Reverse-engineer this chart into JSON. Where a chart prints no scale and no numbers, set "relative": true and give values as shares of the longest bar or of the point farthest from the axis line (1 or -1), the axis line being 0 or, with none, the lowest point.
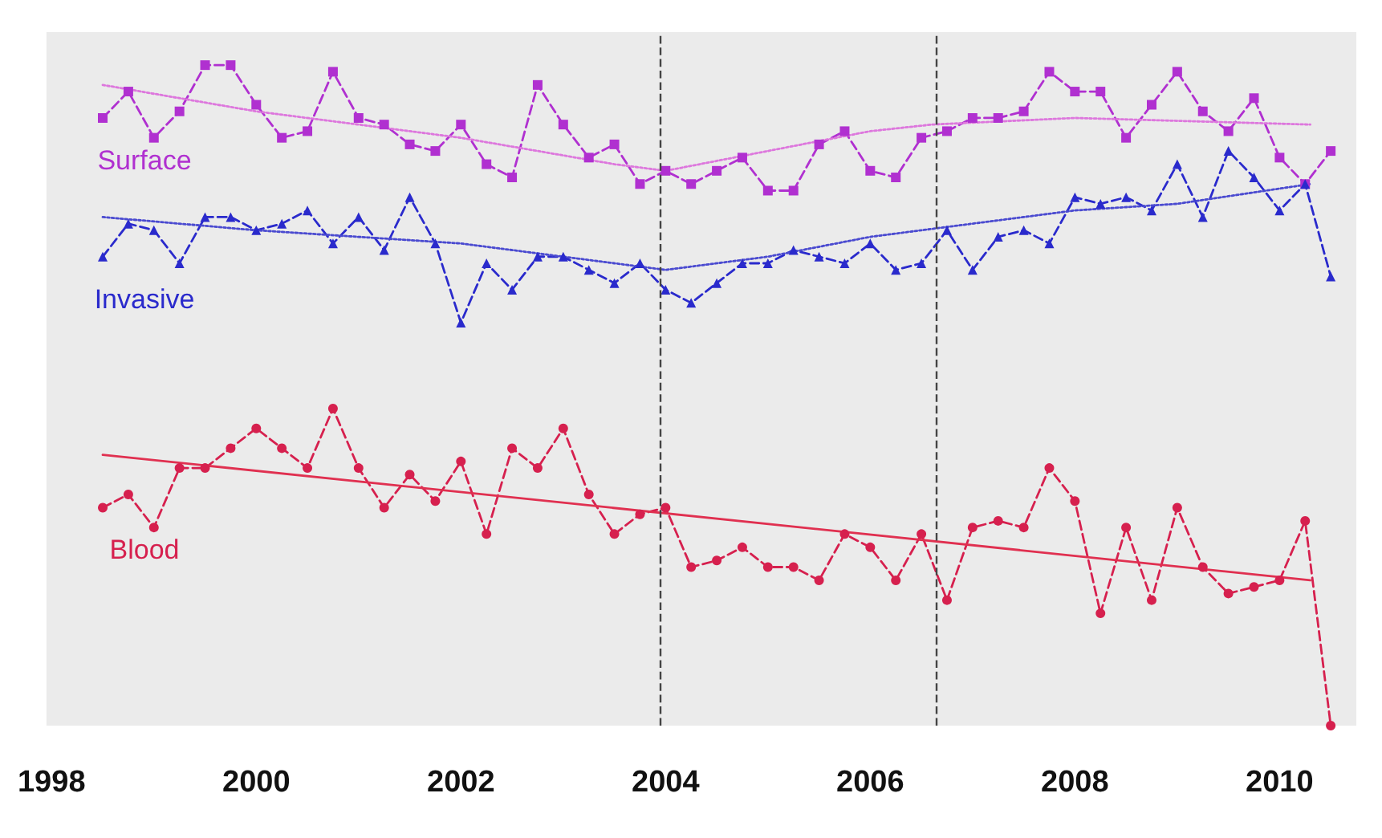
{
  "chart_data": {
    "type": "line",
    "relative": true,
    "grid": false,
    "legend": false,
    "xlim": [
      1997.95,
      2010.75
    ],
    "xticks": [
      1998,
      2000,
      2002,
      2004,
      2006,
      2008,
      2010
    ],
    "x": [
      1998.5,
      1998.75,
      1999,
      1999.25,
      1999.5,
      1999.75,
      2000,
      2000.25,
      2000.5,
      2000.75,
      2001,
      2001.25,
      2001.5,
      2001.75,
      2002,
      2002.25,
      2002.5,
      2002.75,
      2003,
      2003.25,
      2003.5,
      2003.75,
      2004,
      2004.25,
      2004.5,
      2004.75,
      2005,
      2005.25,
      2005.5,
      2005.75,
      2006,
      2006.25,
      2006.5,
      2006.75,
      2007,
      2007.25,
      2007.5,
      2007.75,
      2008,
      2008.25,
      2008.5,
      2008.75,
      2009,
      2009.25,
      2009.5,
      2009.75,
      2010,
      2010.25,
      2010.5
    ],
    "ref_lines": [
      {
        "axis": "x",
        "value": 2003.95,
        "color": "#444444",
        "line_style": "dashed"
      },
      {
        "axis": "x",
        "value": 2006.65,
        "color": "#444444",
        "line_style": "dashed"
      }
    ],
    "series": [
      {
        "name": "Surface",
        "color": "#b030d0",
        "marker": "square",
        "line_style": "dashed",
        "values": [
          0.92,
          0.96,
          0.89,
          0.93,
          1.0,
          1.0,
          0.94,
          0.89,
          0.9,
          0.99,
          0.92,
          0.91,
          0.88,
          0.87,
          0.91,
          0.85,
          0.83,
          0.97,
          0.91,
          0.86,
          0.88,
          0.82,
          0.84,
          0.82,
          0.84,
          0.86,
          0.81,
          0.81,
          0.88,
          0.9,
          0.84,
          0.83,
          0.89,
          0.9,
          0.92,
          0.92,
          0.93,
          0.99,
          0.96,
          0.96,
          0.89,
          0.94,
          0.99,
          0.93,
          0.9,
          0.95,
          0.86,
          0.82,
          0.87
        ]
      },
      {
        "name": "Invasive",
        "color": "#2a2acc",
        "marker": "triangle",
        "line_style": "dashed",
        "values": [
          0.71,
          0.76,
          0.75,
          0.7,
          0.77,
          0.77,
          0.75,
          0.76,
          0.78,
          0.73,
          0.77,
          0.72,
          0.8,
          0.73,
          0.61,
          0.7,
          0.66,
          0.71,
          0.71,
          0.69,
          0.67,
          0.7,
          0.66,
          0.64,
          0.67,
          0.7,
          0.7,
          0.72,
          0.71,
          0.7,
          0.73,
          0.69,
          0.7,
          0.75,
          0.69,
          0.74,
          0.75,
          0.73,
          0.8,
          0.79,
          0.8,
          0.78,
          0.85,
          0.77,
          0.87,
          0.83,
          0.78,
          0.82,
          0.68
        ]
      },
      {
        "name": "Blood",
        "color": "#d6204e",
        "marker": "circle",
        "line_style": "dashed",
        "values": [
          0.33,
          0.35,
          0.3,
          0.39,
          0.39,
          0.42,
          0.45,
          0.42,
          0.39,
          0.48,
          0.39,
          0.33,
          0.38,
          0.34,
          0.4,
          0.29,
          0.42,
          0.39,
          0.45,
          0.35,
          0.29,
          0.32,
          0.33,
          0.24,
          0.25,
          0.27,
          0.24,
          0.24,
          0.22,
          0.29,
          0.27,
          0.22,
          0.29,
          0.19,
          0.3,
          0.31,
          0.3,
          0.39,
          0.34,
          0.17,
          0.3,
          0.19,
          0.33,
          0.24,
          0.2,
          0.21,
          0.22,
          0.31,
          0
        ]
      },
      {
        "type": "line",
        "color": "#dd77dd",
        "marker": "none",
        "line_style": "dotted",
        "x": [
          1998.5,
          2000,
          2002,
          2003.5,
          2004,
          2005,
          2006,
          2006.6,
          2008,
          2010.3
        ],
        "values": [
          0.97,
          0.93,
          0.89,
          0.85,
          0.84,
          0.87,
          0.9,
          0.91,
          0.92,
          0.91
        ]
      },
      {
        "type": "line",
        "color": "#4a4ad0",
        "marker": "none",
        "line_style": "dotted",
        "x": [
          1998.5,
          2000,
          2002,
          2003.5,
          2004,
          2005,
          2006,
          2007,
          2008,
          2009,
          2010.3
        ],
        "values": [
          0.77,
          0.75,
          0.73,
          0.7,
          0.69,
          0.71,
          0.74,
          0.76,
          0.78,
          0.79,
          0.82
        ]
      },
      {
        "type": "line",
        "color": "#e03050",
        "marker": "none",
        "line_style": "solid",
        "x": [
          1998.5,
          2010.3
        ],
        "values": [
          0.41,
          0.22
        ]
      }
    ]
  }
}
